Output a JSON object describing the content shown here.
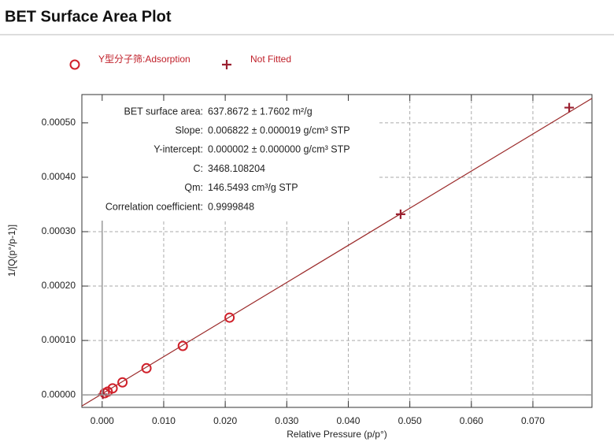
{
  "chart_data": {
    "type": "scatter",
    "title": "BET Surface Area Plot",
    "x_label": "Relative Pressure (p/p°)",
    "y_label": "1/[Q(p°/p-1)]",
    "xlim": [
      -0.0033,
      0.0796
    ],
    "ylim": [
      -2.3e-05,
      0.000552
    ],
    "xticks": [
      {
        "value": 0,
        "label": "0.000"
      },
      {
        "value": 0.01,
        "label": "0.010"
      },
      {
        "value": 0.02,
        "label": "0.020"
      },
      {
        "value": 0.03,
        "label": "0.030"
      },
      {
        "value": 0.04,
        "label": "0.040"
      },
      {
        "value": 0.05,
        "label": "0.050"
      },
      {
        "value": 0.06,
        "label": "0.060"
      },
      {
        "value": 0.07,
        "label": "0.070"
      }
    ],
    "yticks": [
      {
        "value": 0,
        "label": "0.00000"
      },
      {
        "value": 0.0001,
        "label": "0.00010"
      },
      {
        "value": 0.0002,
        "label": "0.00020"
      },
      {
        "value": 0.0003,
        "label": "0.00030"
      },
      {
        "value": 0.0004,
        "label": "0.00040"
      },
      {
        "value": 0.0005,
        "label": "0.00050"
      }
    ],
    "grid": true,
    "series": [
      {
        "name": "Y型分子筛:Adsorption",
        "color": "#d0202a",
        "marker": "circle",
        "x": [
          0.0004,
          0.0009,
          0.0017,
          0.0033,
          0.0072,
          0.0131,
          0.0207
        ],
        "values": [
          3e-06,
          6e-06,
          1.2e-05,
          2.3e-05,
          4.9e-05,
          9e-05,
          0.000142
        ]
      },
      {
        "name": "Not Fitted",
        "color": "#9b2030",
        "marker": "plus",
        "x": [
          0.0001,
          0.0485,
          0.0759
        ],
        "values": [
          1e-06,
          0.000332,
          0.000528
        ]
      }
    ],
    "fit_line": {
      "color": "#9b2a2a",
      "x": [
        -0.0033,
        0.0796
      ],
      "values": [
        -2.05e-05,
        0.000545
      ]
    },
    "stats": [
      {
        "label": "BET surface area:",
        "value": "637.8672 ± 1.7602 m²/g"
      },
      {
        "label": "Slope:",
        "value": "0.006822 ± 0.000019 g/cm³ STP"
      },
      {
        "label": "Y-intercept:",
        "value": "0.000002 ± 0.000000 g/cm³ STP"
      },
      {
        "label": "C:",
        "value": "3468.108204"
      },
      {
        "label": "Qm:",
        "value": "146.5493 cm³/g STP"
      },
      {
        "label": "Correlation coefficient:",
        "value": "0.9999848"
      }
    ]
  }
}
